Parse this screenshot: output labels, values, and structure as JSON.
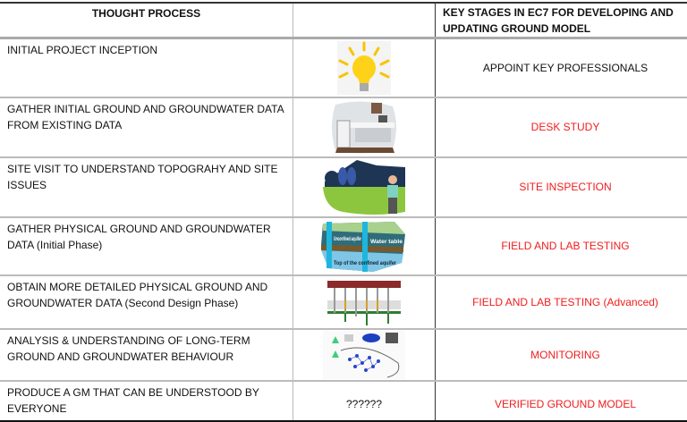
{
  "header": {
    "col1": "THOUGHT PROCESS",
    "col2": "",
    "col3": "KEY STAGES IN EC7 FOR DEVELOPING AND UPDATING GROUND MODEL"
  },
  "rows": [
    {
      "thought": "INITIAL PROJECT INCEPTION",
      "image": "lightbulb-icon",
      "stage": "APPOINT KEY PROFESSIONALS",
      "stage_color": "#111111"
    },
    {
      "thought": "GATHER INITIAL GROUND AND GROUNDWATER DATA FROM EXISTING DATA",
      "image": "desk-office-image",
      "stage": "DESK STUDY",
      "stage_color": "#f01c1c"
    },
    {
      "thought": "SITE VISIT TO UNDERSTAND TOPOGRAHY AND SITE ISSUES",
      "image": "site-visit-illustration",
      "stage": "SITE INSPECTION",
      "stage_color": "#f01c1c"
    },
    {
      "thought": "GATHER PHYSICAL GROUND AND GROUNDWATER DATA (Initial Phase)",
      "image": "aquifer-diagram",
      "image_text": [
        "Unconfined aquifer",
        "Water table",
        "Top of the confined aquifer"
      ],
      "stage": "FIELD AND LAB TESTING",
      "stage_color": "#f01c1c"
    },
    {
      "thought": "OBTAIN MORE DETAILED PHYSICAL GROUND AND GROUNDWATER DATA (Second Design Phase)",
      "image": "borehole-section-diagram",
      "stage": "FIELD AND LAB TESTING (Advanced)",
      "stage_color": "#f01c1c"
    },
    {
      "thought": "ANALYSIS & UNDERSTANDING OF LONG-TERM GROUND AND GROUNDWATER BEHAVIOUR",
      "image": "monitoring-network-diagram",
      "stage": "MONITORING",
      "stage_color": "#f01c1c"
    },
    {
      "thought": "PRODUCE A GM THAT CAN BE UNDERSTOOD BY EVERYONE",
      "image_text_placeholder": "??????",
      "stage": "VERIFIED GROUND MODEL",
      "stage_color": "#f01c1c"
    }
  ]
}
